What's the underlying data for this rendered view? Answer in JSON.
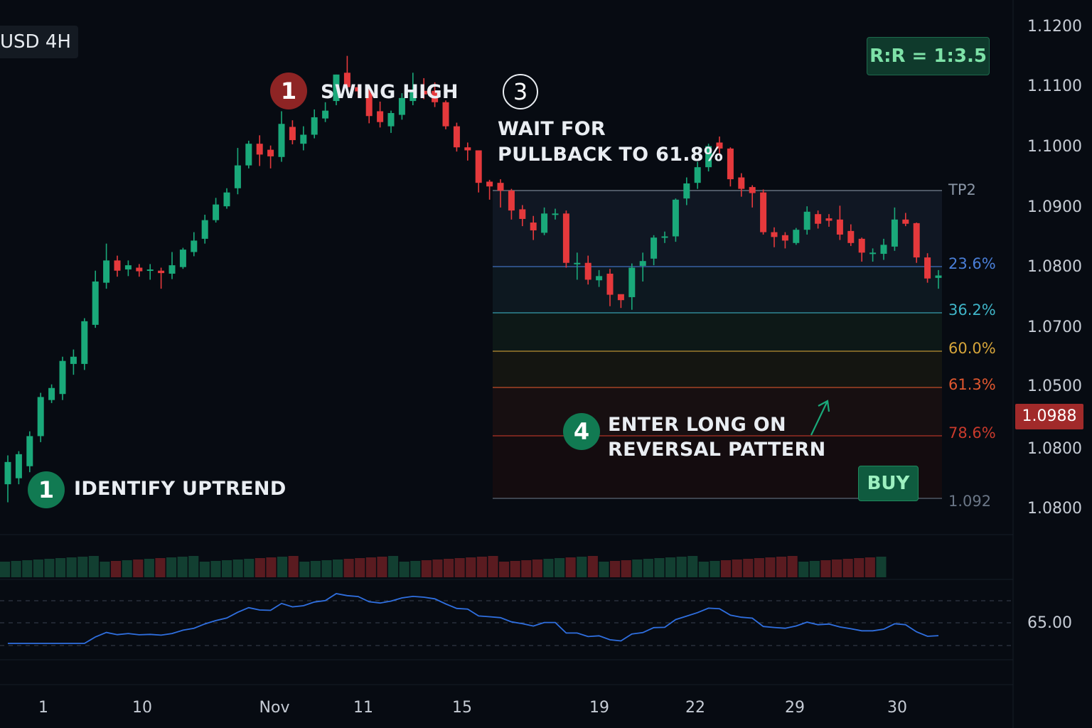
{
  "header": {
    "symbol": "USD  4H",
    "rr": "R:R = 1:3.5"
  },
  "annotations": {
    "swing_high": {
      "num": "1",
      "text": "SWING HIGH"
    },
    "uptrend": {
      "num": "1",
      "text": "IDENTIFY UPTREND"
    },
    "pullback": {
      "num": "3",
      "line1": "WAIT FOR",
      "line2": "PULLBACK TO 61.8%"
    },
    "enter": {
      "num": "4",
      "line1": "ENTER LONG ON",
      "line2": "REVERSAL PATTERN"
    },
    "buy": "BUY"
  },
  "current_price": "1.0988",
  "colors": {
    "up": "#1aa97a",
    "down": "#e5393c",
    "rsi": "#2f6fe0",
    "background": "#070b12"
  },
  "chart_data": {
    "type": "candlestick",
    "y_axis_labels": [
      "1.1200",
      "1.1100",
      "1.1000",
      "1.0900",
      "1.0800",
      "1.0700",
      "1.0500",
      "1.0800",
      "1.0800"
    ],
    "x_axis_labels": [
      "1",
      "10",
      "Nov",
      "11",
      "15",
      "19",
      "22",
      "29",
      "30"
    ],
    "rsi_axis_label": "65.00",
    "fib_levels": [
      {
        "label": "TP2",
        "color": "#8a96a6"
      },
      {
        "label": "23.6%",
        "color": "#4a7fd8"
      },
      {
        "label": "36.2%",
        "color": "#3fb5c8"
      },
      {
        "label": "60.0%",
        "color": "#d6a53a"
      },
      {
        "label": "61.3%",
        "color": "#e0572f"
      },
      {
        "label": "78.6%",
        "color": "#c93a2c"
      },
      {
        "label": "1.092",
        "color": "#6a7686"
      }
    ],
    "candles": [
      [
        1.044,
        1.0477,
        1.041,
        1.0488
      ],
      [
        1.045,
        1.049,
        1.044,
        1.0495
      ],
      [
        1.047,
        1.052,
        1.046,
        1.0528
      ],
      [
        1.052,
        1.0585,
        1.051,
        1.0592
      ],
      [
        1.058,
        1.06,
        1.0575,
        1.0606
      ],
      [
        1.059,
        1.0645,
        1.058,
        1.0652
      ],
      [
        1.064,
        1.0652,
        1.0622,
        1.0664
      ],
      [
        1.064,
        1.0711,
        1.063,
        1.0716
      ],
      [
        1.0705,
        1.0777,
        1.07,
        1.0795
      ],
      [
        1.0775,
        1.0812,
        1.0765,
        1.084
      ],
      [
        1.0812,
        1.0795,
        1.0785,
        1.082
      ],
      [
        1.0797,
        1.0804,
        1.0786,
        1.0812
      ],
      [
        1.08,
        1.0794,
        1.0785,
        1.0806
      ],
      [
        1.0797,
        1.0797,
        1.078,
        1.0806
      ],
      [
        1.0795,
        1.0791,
        1.0765,
        1.08
      ],
      [
        1.079,
        1.0804,
        1.0781,
        1.0826
      ],
      [
        1.0801,
        1.083,
        1.0798,
        1.0833
      ],
      [
        1.0826,
        1.0845,
        1.0819,
        1.0859
      ],
      [
        1.0848,
        1.0879,
        1.084,
        1.0888
      ],
      [
        1.0879,
        1.0905,
        1.0875,
        1.0916
      ],
      [
        1.0902,
        1.0925,
        1.0898,
        1.0932
      ],
      [
        1.0932,
        1.097,
        1.0922,
        1.0999
      ],
      [
        1.097,
        1.1006,
        1.0965,
        1.1011
      ],
      [
        1.1006,
        1.0988,
        1.0969,
        1.102
      ],
      [
        1.0996,
        1.0985,
        1.0965,
        1.1003
      ],
      [
        1.0984,
        1.1039,
        1.0976,
        1.106
      ],
      [
        1.1034,
        1.1012,
        1.1005,
        1.1045
      ],
      [
        1.1006,
        1.1021,
        1.0995,
        1.1035
      ],
      [
        1.1021,
        1.105,
        1.1015,
        1.1063
      ],
      [
        1.1048,
        1.1061,
        1.1042,
        1.1075
      ],
      [
        1.1077,
        1.1121,
        1.107,
        1.1121
      ],
      [
        1.1124,
        1.11,
        1.1094,
        1.1152
      ],
      [
        1.11,
        1.1093,
        1.1083,
        1.1104
      ],
      [
        1.1093,
        1.1052,
        1.104,
        1.1097
      ],
      [
        1.106,
        1.1042,
        1.1033,
        1.1076
      ],
      [
        1.1035,
        1.1057,
        1.1024,
        1.1061
      ],
      [
        1.1054,
        1.1082,
        1.1046,
        1.109
      ],
      [
        1.1077,
        1.1094,
        1.107,
        1.1124
      ],
      [
        1.1094,
        1.1088,
        1.108,
        1.1115
      ],
      [
        1.1094,
        1.1075,
        1.1067,
        1.1108
      ],
      [
        1.1075,
        1.1035,
        1.103,
        1.1078
      ],
      [
        1.1035,
        1.1,
        1.0993,
        1.1041
      ],
      [
        1.1,
        1.0995,
        1.0978,
        1.1008
      ],
      [
        1.0995,
        1.0941,
        1.0925,
        1.0995
      ],
      [
        1.0943,
        1.0935,
        1.0913,
        1.0946
      ],
      [
        1.0941,
        1.0928,
        1.09,
        1.0947
      ],
      [
        1.0928,
        1.0895,
        1.088,
        1.0931
      ],
      [
        1.0897,
        1.0881,
        1.0869,
        1.0904
      ],
      [
        1.0875,
        1.0862,
        1.0846,
        1.0886
      ],
      [
        1.0858,
        1.089,
        1.0854,
        1.09
      ],
      [
        1.089,
        1.089,
        1.088,
        1.0898
      ],
      [
        1.089,
        1.0808,
        1.08,
        1.0895
      ],
      [
        1.0808,
        1.0808,
        1.078,
        1.0825
      ],
      [
        1.0808,
        1.078,
        1.0772,
        1.082
      ],
      [
        1.0779,
        1.0786,
        1.0768,
        1.0796
      ],
      [
        1.079,
        1.0755,
        1.0736,
        1.0798
      ],
      [
        1.0756,
        1.0746,
        1.0733,
        1.0754
      ],
      [
        1.0751,
        1.08,
        1.073,
        1.0807
      ],
      [
        1.0803,
        1.0811,
        1.0777,
        1.0825
      ],
      [
        1.0815,
        1.085,
        1.0804,
        1.0854
      ],
      [
        1.085,
        1.0852,
        1.0841,
        1.086
      ],
      [
        1.0852,
        1.0913,
        1.0843,
        1.0915
      ],
      [
        1.0915,
        1.094,
        1.0904,
        1.095
      ],
      [
        1.0941,
        1.0967,
        1.0931,
        1.0976
      ],
      [
        1.0967,
        1.1002,
        1.096,
        1.1006
      ],
      [
        1.1008,
        1.0998,
        1.0986,
        1.1018
      ],
      [
        1.0998,
        1.0947,
        1.0935,
        1.1
      ],
      [
        1.095,
        1.0931,
        1.0918,
        1.0957
      ],
      [
        1.0934,
        1.0924,
        1.09,
        1.0937
      ],
      [
        1.0925,
        1.0859,
        1.0855,
        1.093
      ],
      [
        1.0859,
        1.0851,
        1.0834,
        1.0867
      ],
      [
        1.0854,
        1.0845,
        1.0832,
        1.0859
      ],
      [
        1.0841,
        1.0863,
        1.0838,
        1.0866
      ],
      [
        1.0863,
        1.0893,
        1.0855,
        1.0902
      ],
      [
        1.0889,
        1.0873,
        1.0865,
        1.0895
      ],
      [
        1.0882,
        1.0878,
        1.0868,
        1.0889
      ],
      [
        1.088,
        1.0855,
        1.0846,
        1.0903
      ],
      [
        1.0861,
        1.0841,
        1.0836,
        1.0872
      ],
      [
        1.0848,
        1.0825,
        1.081,
        1.085
      ],
      [
        1.0825,
        1.0825,
        1.081,
        1.0832
      ],
      [
        1.0823,
        1.0838,
        1.0813,
        1.0848
      ],
      [
        1.0835,
        1.088,
        1.0828,
        1.09
      ],
      [
        1.088,
        1.0873,
        1.0869,
        1.0891
      ],
      [
        1.0874,
        1.0817,
        1.0808,
        1.0875
      ],
      [
        1.0817,
        1.0782,
        1.0775,
        1.0824
      ],
      [
        1.0783,
        1.0787,
        1.0765,
        1.0796
      ]
    ]
  }
}
